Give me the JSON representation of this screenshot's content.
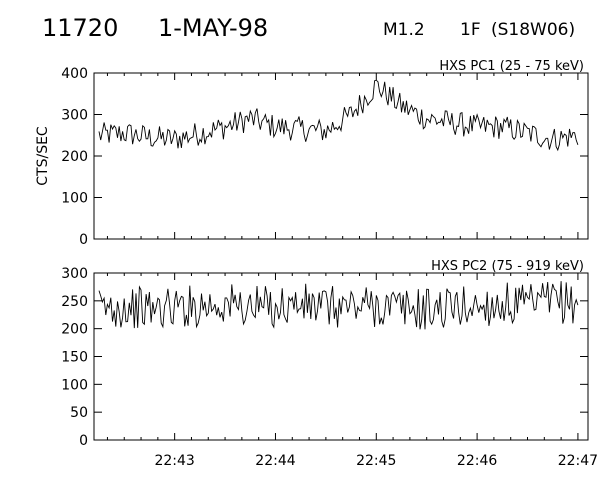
{
  "header": {
    "event_number": "11720",
    "date": "1-MAY-98",
    "flare_class": "M1.2",
    "optical_class": "1F",
    "location": "(S18W06)"
  },
  "chart_data": [
    {
      "type": "line",
      "title": "HXS PC1 (25 - 75 keV)",
      "ylabel": "CTS/SEC",
      "xlabel": "",
      "ylim": [
        0,
        400
      ],
      "yticks": [
        "0",
        "100",
        "200",
        "300",
        "400"
      ],
      "xlim": [
        "22:42:12",
        "22:47:06"
      ],
      "xticks": [
        "22:43",
        "22:44",
        "22:45",
        "22:46",
        "22:47"
      ],
      "grid": false,
      "series": [
        {
          "x": [
            "22:42:15",
            "22:42:30",
            "22:42:45",
            "22:43:00",
            "22:43:15",
            "22:43:30",
            "22:43:45",
            "22:44:00",
            "22:44:15",
            "22:44:30",
            "22:44:45",
            "22:45:00",
            "22:45:15",
            "22:45:30",
            "22:45:45",
            "22:46:00",
            "22:46:15",
            "22:46:30",
            "22:46:45",
            "22:47:00"
          ],
          "values": [
            250,
            255,
            245,
            240,
            255,
            270,
            290,
            270,
            265,
            260,
            300,
            370,
            320,
            290,
            280,
            270,
            270,
            255,
            240,
            250
          ]
        }
      ]
    },
    {
      "type": "line",
      "title": "HXS PC2 (75 - 919 keV)",
      "ylabel": "",
      "xlabel": "",
      "ylim": [
        0,
        300
      ],
      "yticks": [
        "0",
        "50",
        "100",
        "150",
        "200",
        "250",
        "300"
      ],
      "xlim": [
        "22:42:12",
        "22:47:06"
      ],
      "xticks": [
        "22:43",
        "22:44",
        "22:45",
        "22:46",
        "22:47"
      ],
      "grid": false,
      "series": [
        {
          "x": [
            "22:42:15",
            "22:42:30",
            "22:42:45",
            "22:43:00",
            "22:43:15",
            "22:43:30",
            "22:43:45",
            "22:44:00",
            "22:44:15",
            "22:44:30",
            "22:44:45",
            "22:45:00",
            "22:45:15",
            "22:45:30",
            "22:45:45",
            "22:46:00",
            "22:46:15",
            "22:46:30",
            "22:46:45",
            "22:47:00"
          ],
          "values": [
            235,
            240,
            235,
            238,
            242,
            245,
            238,
            240,
            243,
            238,
            240,
            242,
            236,
            235,
            238,
            240,
            245,
            240,
            250,
            245
          ]
        }
      ]
    }
  ]
}
